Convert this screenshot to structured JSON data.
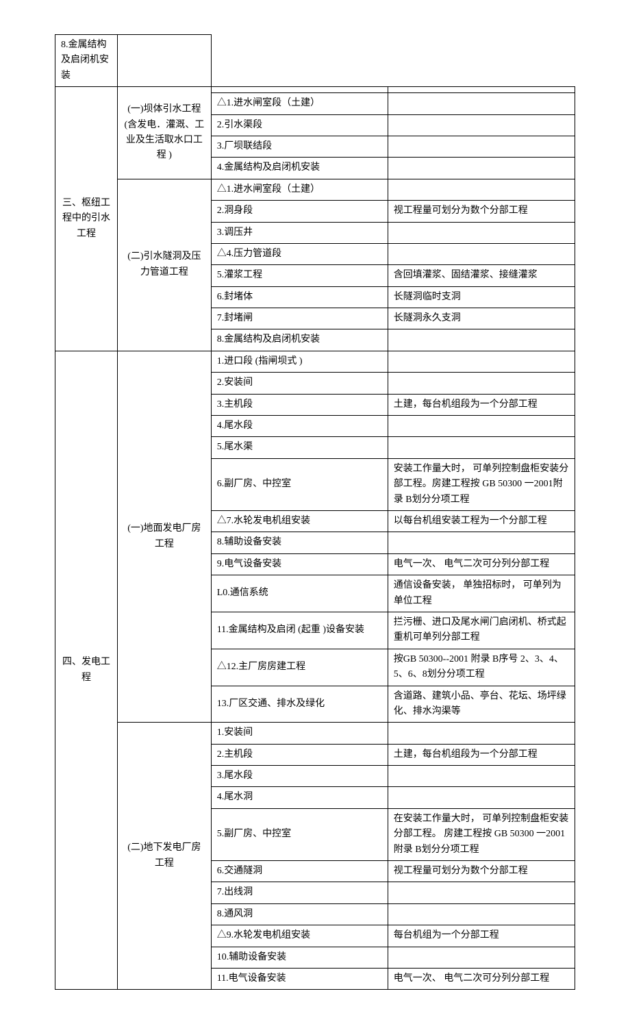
{
  "rows": [
    {
      "c1": null,
      "c2": null,
      "c3": "8.金属结构及启闭机安装",
      "c4": ""
    },
    {
      "c1": "三、枢纽工程中的引水工程",
      "c1_rowspan": 13,
      "c1_class": "center",
      "c2": "(一)坝体引水工程(含发电．灌溉、工业及生活取水口工程 )",
      "c2_rowspan": 5,
      "c2_class": "center",
      "c3": "",
      "c4": ""
    },
    {
      "c3": "△1.进水闸室段（土建）",
      "c4": ""
    },
    {
      "c3": "2.引水渠段",
      "c4": ""
    },
    {
      "c3": "3.厂坝联结段",
      "c4": ""
    },
    {
      "c3": "4.金属结构及启闭机安装",
      "c4": ""
    },
    {
      "c2": "(二)引水隧洞及压力管道工程",
      "c2_rowspan": 8,
      "c2_class": "center",
      "c3": "△1.进水闸室段（土建）",
      "c4": ""
    },
    {
      "c3": "2.洞身段",
      "c4": "视工程量可划分为数个分部工程"
    },
    {
      "c3": "3.调压井",
      "c4": ""
    },
    {
      "c3": "△4.压力管道段",
      "c4": ""
    },
    {
      "c3": "5.灌浆工程",
      "c4": "含回填灌浆、固结灌浆、接缝灌浆"
    },
    {
      "c3": "6.封堵体",
      "c4": "长隧洞临时支洞"
    },
    {
      "c3": "7.封堵闸",
      "c4": "长隧洞永久支洞"
    },
    {
      "c3": "8.金属结构及启闭机安装",
      "c4": ""
    },
    {
      "c1": "四、发电工程",
      "c1_rowspan": 24,
      "c1_class": "center",
      "c2": "(一)地面发电厂房工程",
      "c2_rowspan": 13,
      "c2_class": "center",
      "c3": "1.进口段 (指闸坝式 )",
      "c4": ""
    },
    {
      "c3": "2.安装间",
      "c4": ""
    },
    {
      "c3": "3.主机段",
      "c4": "土建，每台机组段为一个分部工程"
    },
    {
      "c3": "4.尾水段",
      "c4": ""
    },
    {
      "c3": "5.尾水渠",
      "c4": ""
    },
    {
      "c3": "6.副厂房、中控室",
      "c4": "安装工作量大时，  可单列控制盘柜安装分部工程。房建工程按   GB 50300 一2001附录 B划分分项工程"
    },
    {
      "c3": "△7.水轮发电机组安装",
      "c4": "以每台机组安装工程为一个分部工程"
    },
    {
      "c3": "8.辅助设备安装",
      "c4": ""
    },
    {
      "c3": "9.电气设备安装",
      "c4": "电气一次、 电气二次可分列分部工程"
    },
    {
      "c3": "L0.通信系统",
      "c4": "通信设备安装，  单独招标时，  可单列为单位工程"
    },
    {
      "c3": "11.金属结构及启闭   (起重 )设备安装",
      "c4": "拦污栅、进口及尾水闸门启闭机、桥式起重机可单列分部工程"
    },
    {
      "c3": "△12.主厂房房建工程",
      "c4": "按GB 50300--2001 附录 B序号 2、3、4、5、6、8划分分项工程"
    },
    {
      "c3": "13.厂区交通、排水及绿化",
      "c4": "含道路、建筑小品、亭台、花坛、场坪绿化、排水沟渠等"
    },
    {
      "c2": "(二)地下发电厂房工程",
      "c2_rowspan": 11,
      "c2_class": "center",
      "c3": "1.安装间",
      "c4": ""
    },
    {
      "c3": "2.主机段",
      "c4": "土建，每台机组段为一个分部工程"
    },
    {
      "c3": "3.尾水段",
      "c4": ""
    },
    {
      "c3": "4.尾水洞",
      "c4": ""
    },
    {
      "c3": "5.副厂房、中控室",
      "c4": "在安装工作量大时，  可单列控制盘柜安装分部工程。 房建工程按  GB 50300 一2001附录 B划分分项工程"
    },
    {
      "c3": "6.交通隧洞",
      "c4": "视工程量可划分为数个分部工程"
    },
    {
      "c3": "7.出线洞",
      "c4": ""
    },
    {
      "c3": "8.通风洞",
      "c4": ""
    },
    {
      "c3": "△9.水轮发电机组安装",
      "c4": "每台机组为一个分部工程"
    },
    {
      "c3": "10.辅助设备安装",
      "c4": ""
    },
    {
      "c3": "11.电气设备安装",
      "c4": "电气一次、 电气二次可分列分部工程"
    }
  ]
}
